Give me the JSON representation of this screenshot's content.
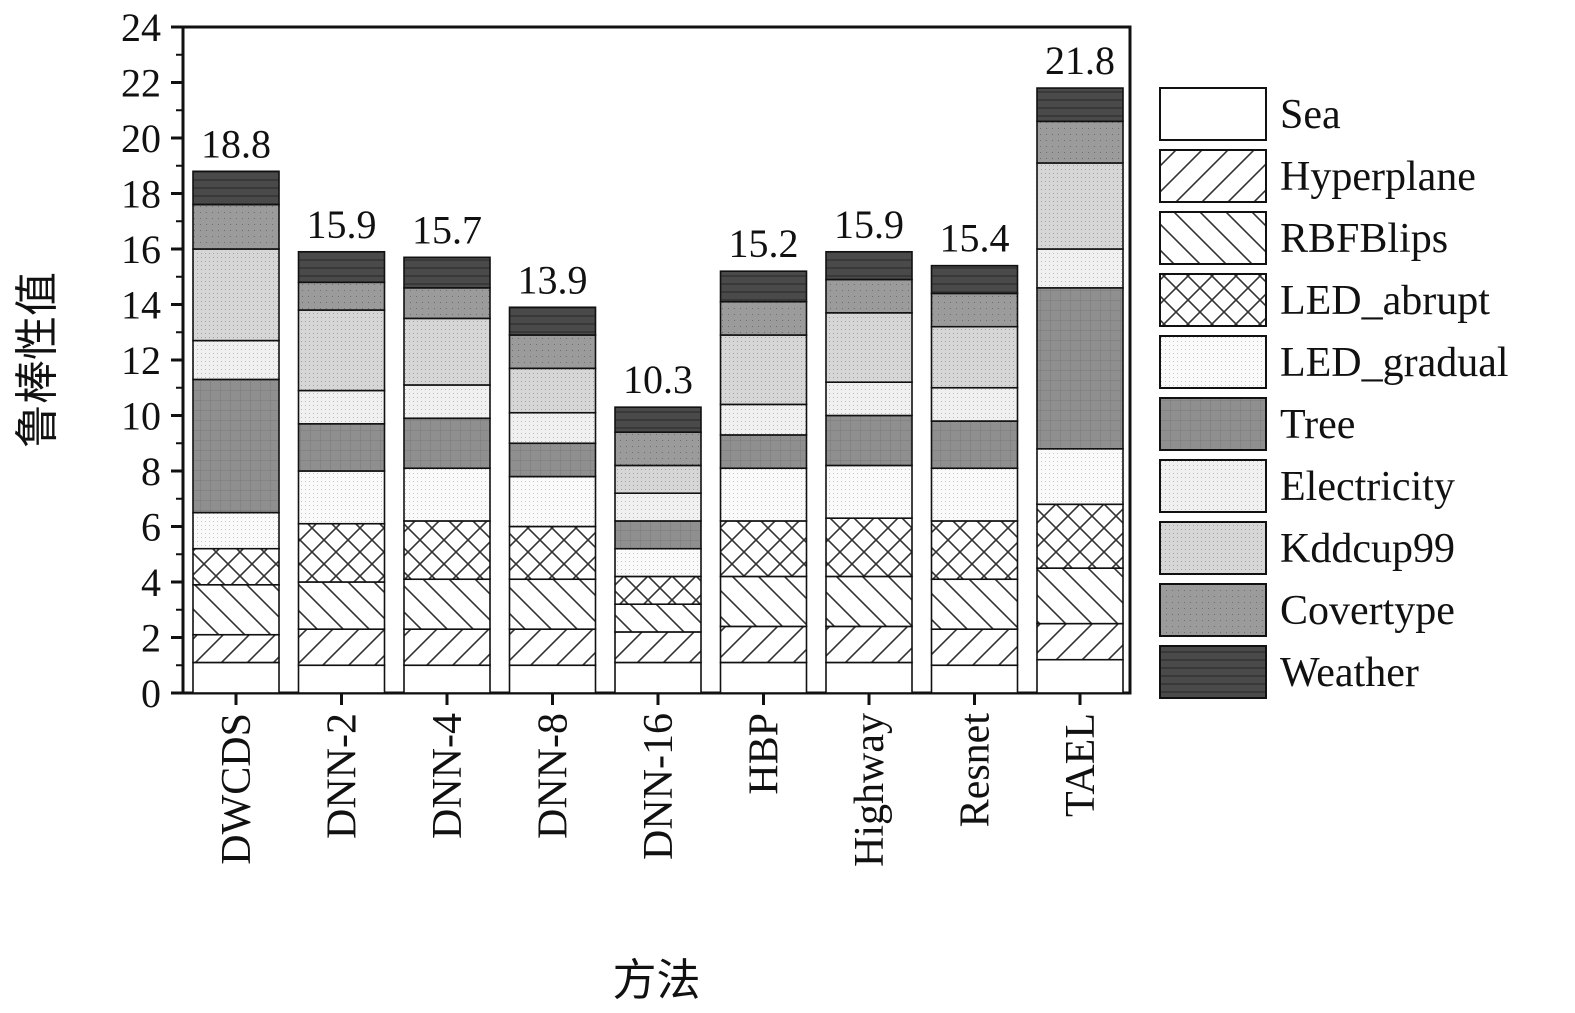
{
  "chart_data": {
    "type": "bar",
    "stacked": true,
    "xlabel": "方法",
    "ylabel": "鲁棒性值",
    "ylim": [
      0,
      24
    ],
    "yticks": [
      0,
      2,
      4,
      6,
      8,
      10,
      12,
      14,
      16,
      18,
      20,
      22,
      24
    ],
    "grid": false,
    "legend_position": "right",
    "categories": [
      "DWCDS",
      "DNN-2",
      "DNN-4",
      "DNN-8",
      "DNN-16",
      "HBP",
      "Highway",
      "Resnet",
      "TAEL"
    ],
    "totals": [
      "18.8",
      "15.9",
      "15.7",
      "13.9",
      "10.3",
      "15.2",
      "15.9",
      "15.4",
      "21.8"
    ],
    "series": [
      {
        "name": "Sea",
        "pattern": "plain",
        "values": [
          1.1,
          1.0,
          1.0,
          1.0,
          1.1,
          1.1,
          1.1,
          1.0,
          1.2
        ]
      },
      {
        "name": "Hyperplane",
        "pattern": "hatch-fwd",
        "values": [
          1.0,
          1.3,
          1.3,
          1.3,
          1.1,
          1.3,
          1.3,
          1.3,
          1.3
        ]
      },
      {
        "name": "RBFBlips",
        "pattern": "hatch-back",
        "values": [
          1.8,
          1.7,
          1.8,
          1.8,
          1.0,
          1.8,
          1.8,
          1.8,
          2.0
        ]
      },
      {
        "name": "LED_abrupt",
        "pattern": "cross",
        "values": [
          1.3,
          2.1,
          2.1,
          1.9,
          1.0,
          2.0,
          2.1,
          2.1,
          2.3
        ]
      },
      {
        "name": "LED_gradual",
        "pattern": "dots-fine",
        "values": [
          1.3,
          1.9,
          1.9,
          1.8,
          1.0,
          1.9,
          1.9,
          1.9,
          2.0
        ]
      },
      {
        "name": "Tree",
        "pattern": "grid-dark",
        "values": [
          4.8,
          1.7,
          1.8,
          1.2,
          1.0,
          1.2,
          1.8,
          1.7,
          5.8
        ]
      },
      {
        "name": "Electricity",
        "pattern": "dots-light",
        "values": [
          1.4,
          1.2,
          1.2,
          1.1,
          1.0,
          1.1,
          1.2,
          1.2,
          1.4
        ]
      },
      {
        "name": "Kddcup99",
        "pattern": "dots-mid",
        "values": [
          3.3,
          2.9,
          2.4,
          1.6,
          1.0,
          2.5,
          2.5,
          2.2,
          3.1
        ]
      },
      {
        "name": "Covertype",
        "pattern": "dots-dark",
        "values": [
          1.6,
          1.0,
          1.1,
          1.2,
          1.2,
          1.2,
          1.2,
          1.2,
          1.5
        ]
      },
      {
        "name": "Weather",
        "pattern": "lines-dark",
        "values": [
          1.2,
          1.1,
          1.1,
          1.0,
          0.9,
          1.1,
          1.0,
          1.0,
          1.2
        ]
      }
    ]
  }
}
